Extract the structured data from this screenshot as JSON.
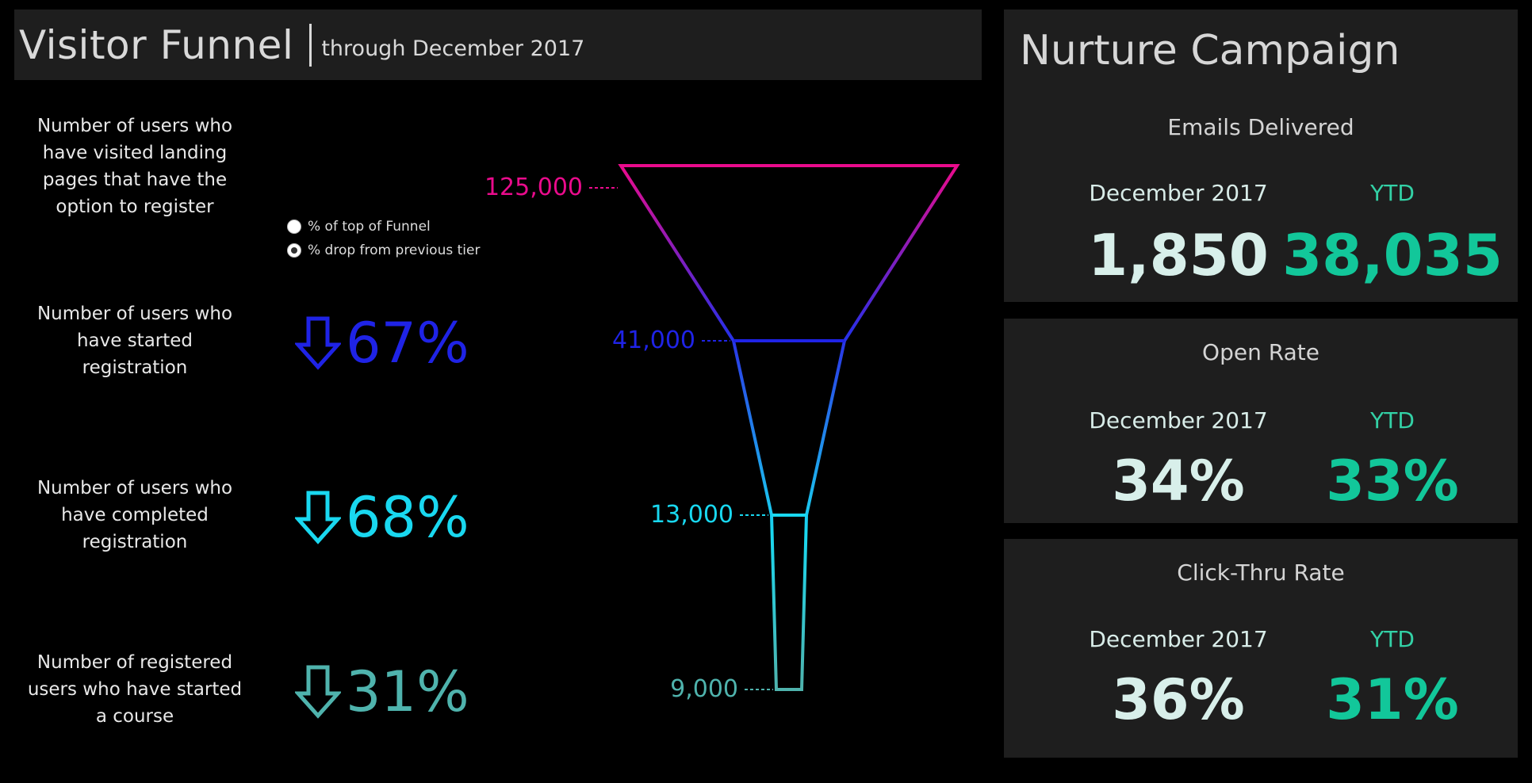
{
  "header": {
    "title": "Visitor Funnel",
    "subtitle": "through December 2017"
  },
  "tiers": [
    {
      "label": "Number of users who have visited landing pages that have the option to register",
      "value_label": "125,000",
      "color": "#ea0b8c"
    },
    {
      "label": "Number of users who have started registration",
      "value_label": "41,000",
      "pct": "67%",
      "color": "#1f23e6"
    },
    {
      "label": "Number of users who have completed registration",
      "value_label": "13,000",
      "pct": "68%",
      "color": "#19d8f0"
    },
    {
      "label": "Number of registered users who have started a course",
      "value_label": "9,000",
      "pct": "31%",
      "color": "#4fb3ad"
    }
  ],
  "toggle": {
    "options": [
      "% of top of Funnel",
      "% drop from previous tier"
    ],
    "selected": "% drop from previous tier"
  },
  "chart_data": {
    "type": "funnel",
    "categories": [
      "Number of users who have visited landing pages that have the option to register",
      "Number of users who have started registration",
      "Number of users who have completed registration",
      "Number of registered users who have started a course"
    ],
    "values": [
      125000,
      41000,
      13000,
      9000
    ],
    "pct_drop_from_previous": [
      null,
      67,
      68,
      31
    ],
    "colors": [
      "#ea0b8c",
      "#1f23e6",
      "#19d8f0",
      "#4fb3ad"
    ]
  },
  "nurture": {
    "title": "Nurture Campaign",
    "panels": [
      {
        "heading": "Emails Delivered",
        "month_label": "December 2017",
        "ytd_label": "YTD",
        "month_value": "1,850",
        "ytd_value": "38,035"
      },
      {
        "heading": "Open Rate",
        "month_label": "December 2017",
        "ytd_label": "YTD",
        "month_value": "34%",
        "ytd_value": "33%"
      },
      {
        "heading": "Click-Thru Rate",
        "month_label": "December 2017",
        "ytd_label": "YTD",
        "month_value": "36%",
        "ytd_value": "31%"
      }
    ]
  }
}
